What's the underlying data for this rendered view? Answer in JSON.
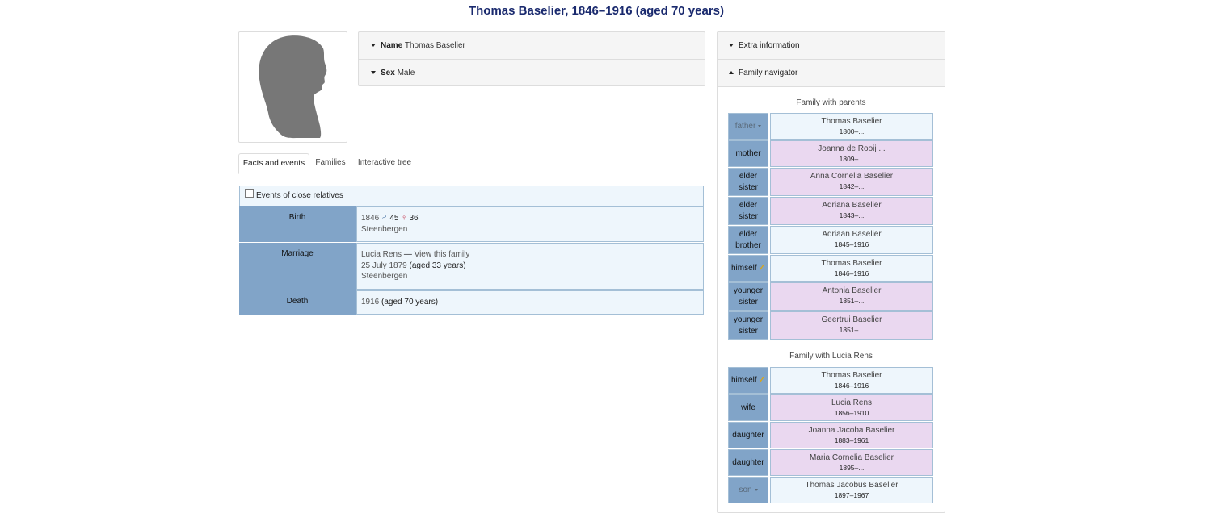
{
  "page_title": "Thomas Baselier, 1846–1916 (aged 70 years)",
  "name_panel": {
    "name_label": "Name",
    "name_value": "Thomas Baselier",
    "sex_label": "Sex",
    "sex_value": "Male"
  },
  "tabs": [
    "Facts and events",
    "Families",
    "Interactive tree"
  ],
  "close_relatives_label": "Events of close relatives",
  "facts": [
    {
      "label": "Birth",
      "date": "1846",
      "father_age": "45",
      "mother_age": "36",
      "place": "Steenbergen"
    },
    {
      "label": "Marriage",
      "spouse": "Lucia Rens",
      "sep": "—",
      "family_link": "View this family",
      "date": "25 July 1879",
      "age": "(aged 33 years)",
      "place": "Steenbergen"
    },
    {
      "label": "Death",
      "date": "1916",
      "age": "(aged 70 years)"
    }
  ],
  "sidebar": {
    "extra_info": "Extra information",
    "family_navigator": "Family navigator",
    "parents_family": {
      "caption": "Family with parents",
      "members": [
        {
          "relation": "father",
          "name": "Thomas Baselier",
          "years": "1800–...",
          "sex": "m"
        },
        {
          "relation": "mother",
          "name": "Joanna de Rooij ...",
          "years": "1809–...",
          "sex": "f"
        },
        {
          "relation": "elder sister",
          "name": "Anna Cornelia Baselier",
          "years": "1842–...",
          "sex": "f"
        },
        {
          "relation": "elder sister",
          "name": "Adriana Baselier",
          "years": "1843–...",
          "sex": "f"
        },
        {
          "relation": "elder brother",
          "name": "Adriaan Baselier",
          "years": "1845–1916",
          "sex": "m"
        },
        {
          "relation": "himself",
          "name": "Thomas Baselier",
          "years": "1846–1916",
          "sex": "m"
        },
        {
          "relation": "younger sister",
          "name": "Antonia Baselier",
          "years": "1851–...",
          "sex": "f"
        },
        {
          "relation": "younger sister",
          "name": "Geertrui Baselier",
          "years": "1851–...",
          "sex": "f"
        }
      ]
    },
    "spouse_family": {
      "caption": "Family with Lucia Rens",
      "members": [
        {
          "relation": "himself",
          "name": "Thomas Baselier",
          "years": "1846–1916",
          "sex": "m"
        },
        {
          "relation": "wife",
          "name": "Lucia Rens",
          "years": "1856–1910",
          "sex": "f"
        },
        {
          "relation": "daughter",
          "name": "Joanna Jacoba Baselier",
          "years": "1883–1961",
          "sex": "f"
        },
        {
          "relation": "daughter",
          "name": "Maria Cornelia Baselier",
          "years": "1895–...",
          "sex": "f"
        },
        {
          "relation": "son",
          "name": "Thomas Jacobus Baselier",
          "years": "1897–1967",
          "sex": "m"
        }
      ]
    }
  },
  "colors": {
    "title": "#1a2a6e",
    "label_bg": "#81a4c8",
    "male_bg": "#eef6fc",
    "female_bg": "#ead8f0"
  }
}
